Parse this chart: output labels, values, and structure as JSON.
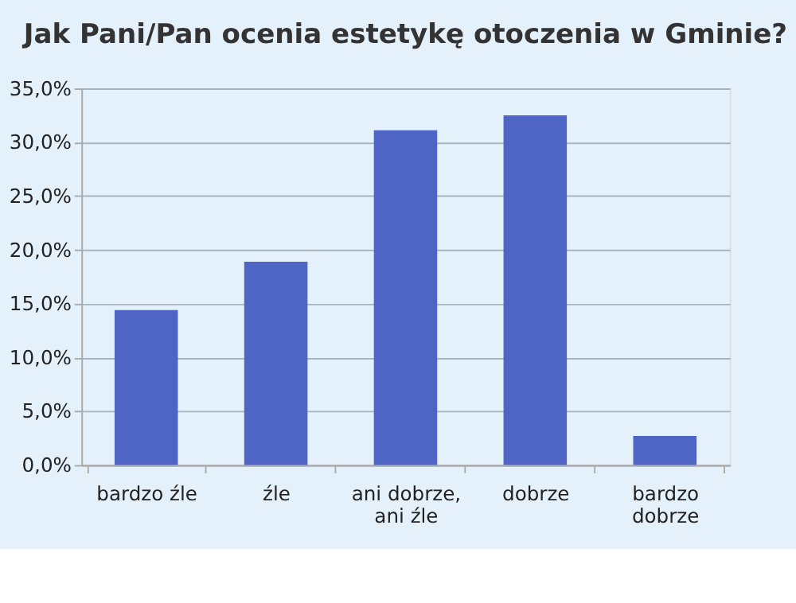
{
  "chart_data": {
    "type": "bar",
    "title": "Jak Pani/Pan ocenia estetykę otoczenia w Gminie?",
    "categories": [
      "bardzo źle",
      "źle",
      "ani dobrze,\nani źle",
      "dobrze",
      "bardzo\ndobrze"
    ],
    "values": [
      14.4,
      18.9,
      31.1,
      32.5,
      2.7
    ],
    "color": "#4f65c6",
    "ylim": [
      0,
      35
    ],
    "yticks": [
      {
        "value": 0,
        "label": "0,0%"
      },
      {
        "value": 5,
        "label": "5,0%"
      },
      {
        "value": 10,
        "label": "10,0%"
      },
      {
        "value": 15,
        "label": "15,0%"
      },
      {
        "value": 20,
        "label": "20,0%"
      },
      {
        "value": 25,
        "label": "25,0%"
      },
      {
        "value": 30,
        "label": "30,0%"
      },
      {
        "value": 35,
        "label": "35,0%"
      }
    ],
    "grid": "y"
  }
}
